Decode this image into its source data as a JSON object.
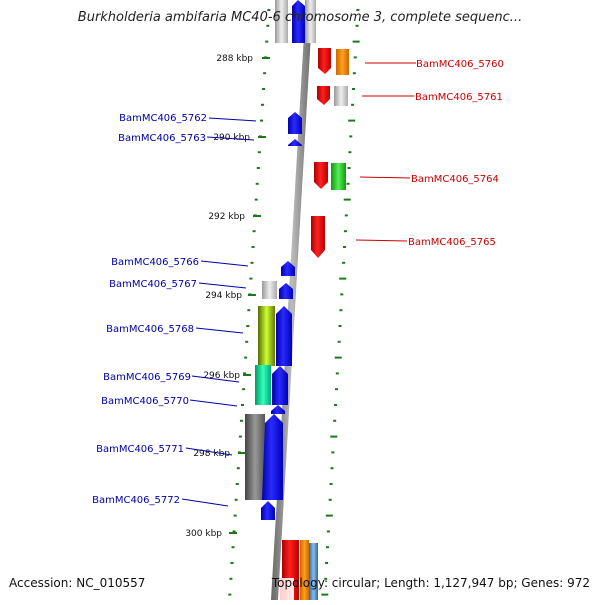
{
  "title": "Burkholderia ambifaria MC40-6 chromosome 3, complete sequenc...",
  "accession_label": "Accession: NC_010557",
  "summary_label": "Topology: circular; Length: 1,127,947 bp; Genes: 972",
  "colors": {
    "backbone": "#777777",
    "ticks": "#1a7a1a",
    "forward_label": "#cc0000",
    "reverse_label": "#0000aa"
  },
  "scale": {
    "labels": [
      "288 kbp",
      "290 kbp",
      "292 kbp",
      "294 kbp",
      "296 kbp",
      "298 kbp",
      "300 kbp"
    ]
  },
  "forward_genes": [
    {
      "name": "BamMC406_5760",
      "color": "#ee0000"
    },
    {
      "name": "BamMC406_5761",
      "color": "#ee0000"
    },
    {
      "name": "BamMC406_5764",
      "color": "#ee0000"
    },
    {
      "name": "BamMC406_5765",
      "color": "#ee0000"
    }
  ],
  "reverse_genes": [
    {
      "name": "BamMC406_5762",
      "color": "#0000ee"
    },
    {
      "name": "BamMC406_5763",
      "color": "#0000ee"
    },
    {
      "name": "BamMC406_5766",
      "color": "#0000ee"
    },
    {
      "name": "BamMC406_5767",
      "color": "#0000ee"
    },
    {
      "name": "BamMC406_5768",
      "color": "#0000ee"
    },
    {
      "name": "BamMC406_5769",
      "color": "#0000ee"
    },
    {
      "name": "BamMC406_5770",
      "color": "#0000ee"
    },
    {
      "name": "BamMC406_5771",
      "color": "#0000ee"
    },
    {
      "name": "BamMC406_5772",
      "color": "#0000ee"
    }
  ]
}
